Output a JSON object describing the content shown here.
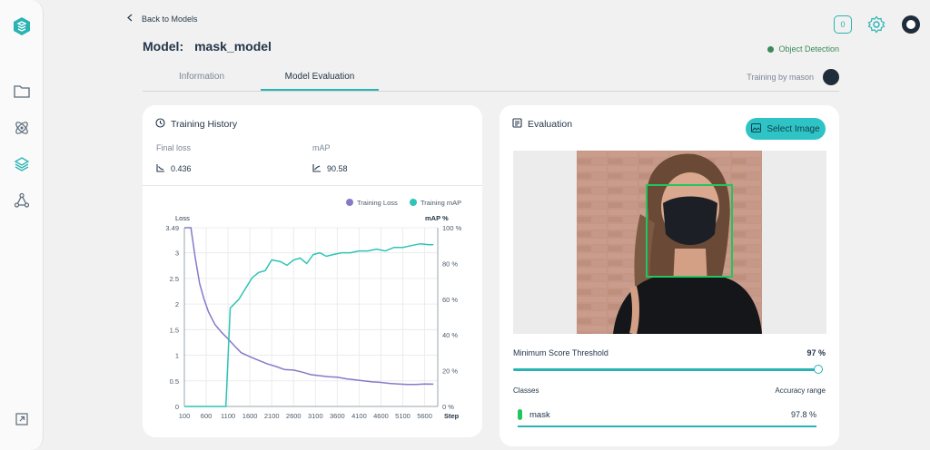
{
  "nav": {
    "back_label": "Back to Models",
    "notification_count": "0"
  },
  "model": {
    "label": "Model:",
    "name": "mask_model",
    "type": "Object Detection",
    "type_color": "#3a8a5a"
  },
  "tabs": [
    {
      "label": "Information",
      "active": false
    },
    {
      "label": "Model Evaluation",
      "active": true
    }
  ],
  "training_by": "Training by mason",
  "training_history": {
    "title": "Training History",
    "final_loss_label": "Final loss",
    "final_loss_value": "0.436",
    "map_label": "mAP",
    "map_value": "90.58"
  },
  "chart_data": {
    "type": "line",
    "legend": [
      "Training Loss",
      "Training mAP"
    ],
    "legend_placement": "top-right",
    "ylabel_left": "Loss",
    "ylabel_right": "mAP %",
    "xlabel": "Step",
    "x_ticks": [
      "100",
      "600",
      "1100",
      "1600",
      "2100",
      "2600",
      "3100",
      "3600",
      "4100",
      "4600",
      "5100",
      "5600"
    ],
    "y_left_ticks": [
      "3.49",
      "3",
      "2.5",
      "2",
      "1.5",
      "1",
      "0.5",
      "0"
    ],
    "y_right_ticks": [
      "100 %",
      "80 %",
      "60 %",
      "40 %",
      "20 %",
      "0 %"
    ],
    "xlim": [
      100,
      5900
    ],
    "ylim_left": [
      0,
      3.49
    ],
    "ylim_right": [
      0,
      100
    ],
    "grid": true,
    "series": [
      {
        "name": "Training Loss",
        "axis": "left",
        "color": "#8878c8",
        "points": [
          [
            100,
            3.49
          ],
          [
            250,
            3.49
          ],
          [
            350,
            2.9
          ],
          [
            450,
            2.4
          ],
          [
            550,
            2.1
          ],
          [
            650,
            1.85
          ],
          [
            800,
            1.6
          ],
          [
            950,
            1.45
          ],
          [
            1100,
            1.32
          ],
          [
            1250,
            1.18
          ],
          [
            1400,
            1.05
          ],
          [
            1600,
            0.97
          ],
          [
            1800,
            0.9
          ],
          [
            2000,
            0.83
          ],
          [
            2200,
            0.78
          ],
          [
            2400,
            0.72
          ],
          [
            2600,
            0.71
          ],
          [
            2800,
            0.67
          ],
          [
            3000,
            0.62
          ],
          [
            3200,
            0.6
          ],
          [
            3400,
            0.58
          ],
          [
            3600,
            0.57
          ],
          [
            3800,
            0.54
          ],
          [
            4000,
            0.52
          ],
          [
            4200,
            0.5
          ],
          [
            4400,
            0.48
          ],
          [
            4600,
            0.47
          ],
          [
            4800,
            0.45
          ],
          [
            5000,
            0.44
          ],
          [
            5200,
            0.43
          ],
          [
            5400,
            0.43
          ],
          [
            5600,
            0.44
          ],
          [
            5800,
            0.436
          ]
        ]
      },
      {
        "name": "Training mAP",
        "axis": "right",
        "color": "#2ec4b6",
        "points": [
          [
            100,
            0
          ],
          [
            1050,
            0
          ],
          [
            1150,
            55
          ],
          [
            1350,
            60
          ],
          [
            1500,
            66
          ],
          [
            1650,
            72
          ],
          [
            1800,
            75
          ],
          [
            1950,
            76
          ],
          [
            2100,
            82
          ],
          [
            2300,
            81
          ],
          [
            2450,
            79
          ],
          [
            2600,
            82
          ],
          [
            2750,
            83
          ],
          [
            2900,
            80
          ],
          [
            3050,
            85
          ],
          [
            3200,
            86
          ],
          [
            3350,
            84
          ],
          [
            3500,
            85
          ],
          [
            3700,
            86
          ],
          [
            3900,
            86
          ],
          [
            4100,
            87
          ],
          [
            4300,
            87
          ],
          [
            4500,
            88
          ],
          [
            4700,
            87
          ],
          [
            4900,
            89
          ],
          [
            5100,
            89
          ],
          [
            5300,
            90
          ],
          [
            5500,
            91
          ],
          [
            5700,
            90.5
          ],
          [
            5800,
            90.58
          ]
        ]
      }
    ]
  },
  "evaluation": {
    "title": "Evaluation",
    "select_label": "Select Image",
    "threshold_label": "Minimum Score Threshold",
    "threshold_value": "97 %",
    "threshold_fraction": 0.97,
    "classes_label": "Classes",
    "accuracy_label": "Accuracy range",
    "classes": [
      {
        "name": "mask",
        "accuracy": "97.8 %",
        "color": "#22c55e",
        "fraction": 0.978
      }
    ]
  },
  "colors": {
    "accent": "#2ab3b3",
    "button": "#2ec4c6",
    "detection_box": "#22c55e"
  }
}
